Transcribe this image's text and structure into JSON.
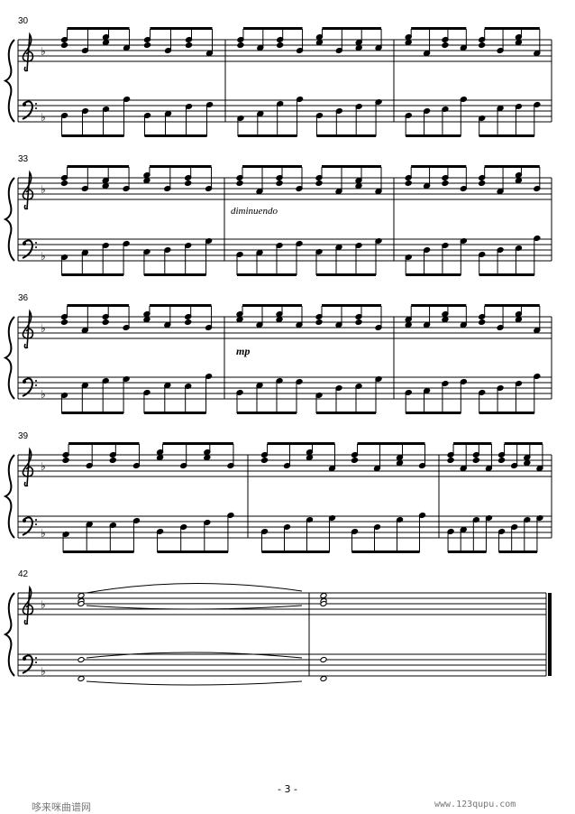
{
  "score": {
    "measure_numbers": [
      "30",
      "33",
      "36",
      "39",
      "42"
    ],
    "expressions": {
      "diminuendo": "diminuendo",
      "mp": "mp"
    },
    "key_signature": "one-flat",
    "clefs": [
      "treble-clef-icon",
      "bass-clef-icon"
    ]
  },
  "page_number": "- 3 -",
  "footer": {
    "left": "哆来咪曲谱网",
    "right": "www.123qupu.com"
  }
}
